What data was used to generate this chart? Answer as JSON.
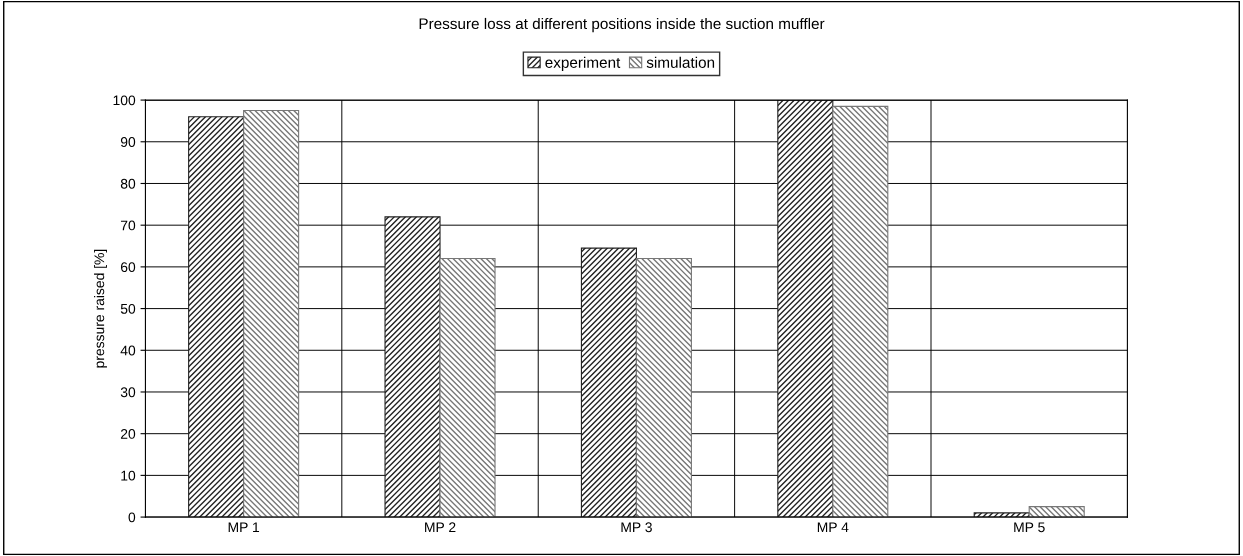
{
  "chart_data": {
    "type": "bar",
    "title": "Pressure loss at different positions inside the suction muffler",
    "ylabel": "pressure raised [%]",
    "categories": [
      "MP 1",
      "MP 2",
      "MP 3",
      "MP 4",
      "MP 5"
    ],
    "series": [
      {
        "name": "experiment",
        "color": "#222222",
        "values": [
          96,
          72,
          64.5,
          100,
          1
        ]
      },
      {
        "name": "simulation",
        "color": "#777777",
        "values": [
          97.5,
          62,
          62,
          98.5,
          2.5
        ]
      }
    ],
    "ylim": [
      0,
      100
    ],
    "yticks": [
      0,
      10,
      20,
      30,
      40,
      50,
      60,
      70,
      80,
      90,
      100
    ],
    "grid": true,
    "legend": "top"
  }
}
